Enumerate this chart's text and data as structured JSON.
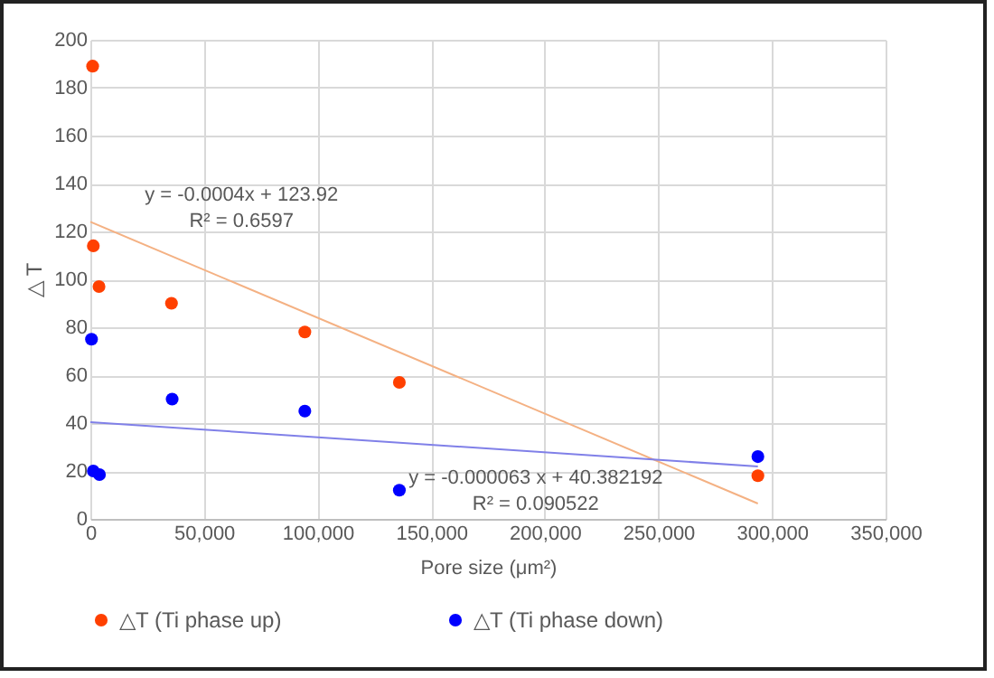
{
  "chart_data": {
    "type": "scatter",
    "xlabel": "Pore size (μm²)",
    "ylabel": "△ T",
    "xlim": [
      0,
      350000
    ],
    "xticks": [
      {
        "value": 0,
        "label": "0"
      },
      {
        "value": 50000,
        "label": "50,000"
      },
      {
        "value": 100000,
        "label": "100,000"
      },
      {
        "value": 150000,
        "label": "150,000"
      },
      {
        "value": 200000,
        "label": "200,000"
      },
      {
        "value": 250000,
        "label": "250,000"
      },
      {
        "value": 300000,
        "label": "300,000"
      },
      {
        "value": 350000,
        "label": "350,000"
      }
    ],
    "ylim": [
      0,
      200
    ],
    "yticks": [
      0,
      20,
      40,
      60,
      80,
      100,
      120,
      140,
      160,
      180,
      200
    ],
    "grid": true,
    "legend": "bottom",
    "marker": "circle",
    "series": [
      {
        "name": "△T (Ti phase up)",
        "color": "#ff4000",
        "x": [
          1000,
          1300,
          3800,
          35700,
          94400,
          136000,
          293800
        ],
        "values": [
          189,
          114,
          97,
          90,
          78,
          57,
          18
        ]
      },
      {
        "name": "△T (Ti phase down)",
        "color": "#0000ff",
        "x": [
          500,
          1300,
          4000,
          36000,
          94400,
          136000,
          293800
        ],
        "values": [
          75,
          20,
          18.5,
          50,
          45,
          12,
          26
        ]
      },
      {
        "type": "line",
        "marker": "none",
        "color": "#f4b183",
        "x": [
          0,
          293800
        ],
        "values": [
          124,
          6.4
        ]
      },
      {
        "type": "line",
        "marker": "none",
        "color": "#8080e8",
        "x": [
          0,
          293800
        ],
        "values": [
          40.4,
          21.9
        ]
      }
    ],
    "annotations": [
      "y = -0.0004x + 123.92",
      "R² = 0.6597",
      "y = -0.000063 x + 40.382192",
      "R² = 0.090522"
    ]
  }
}
